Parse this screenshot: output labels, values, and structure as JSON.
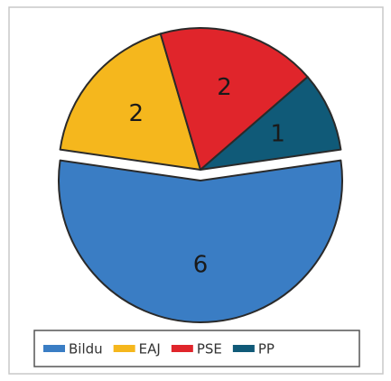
{
  "chart_data": {
    "type": "pie",
    "categories": [
      "Bildu",
      "EAJ",
      "PSE",
      "PP"
    ],
    "values": [
      6,
      2,
      2,
      1
    ],
    "colors": [
      "#3a7dc4",
      "#f5b71d",
      "#e0252b",
      "#105a78"
    ],
    "legend": "bottom"
  }
}
